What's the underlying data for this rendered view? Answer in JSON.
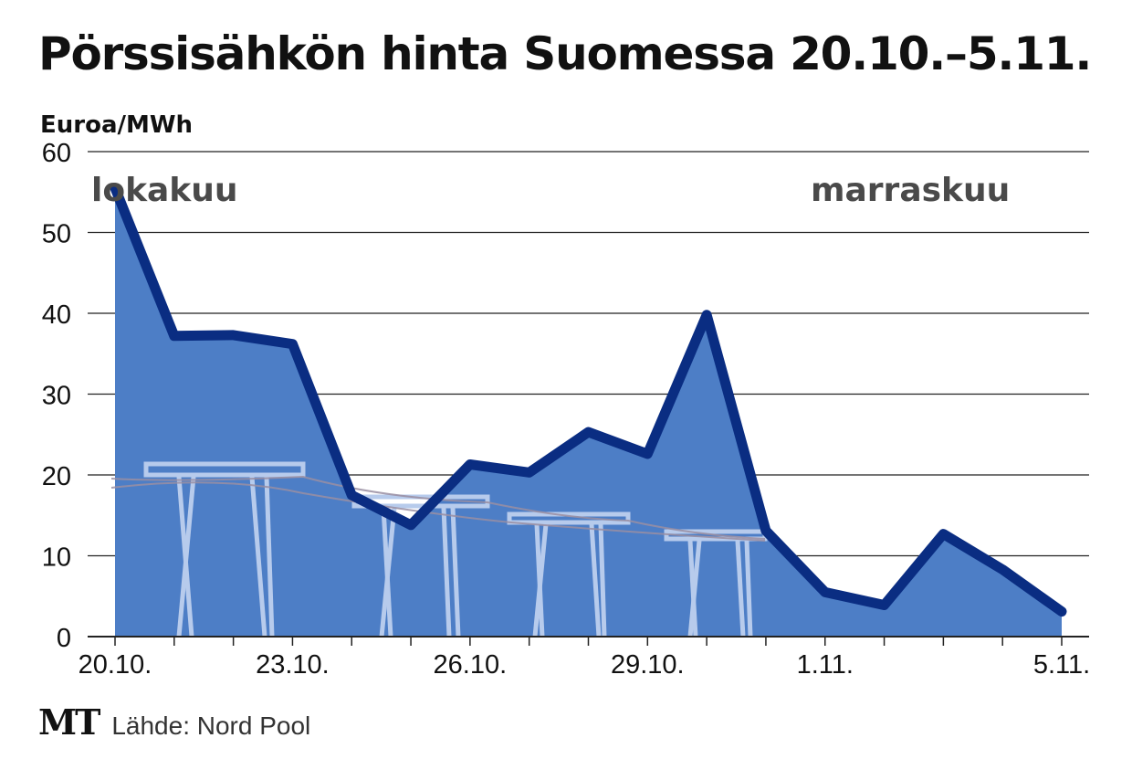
{
  "chart_data": {
    "type": "area",
    "title": "Pörssisähkön hinta Suomessa 20.10.–5.11.",
    "ylabel": "Euroa/MWh",
    "ylim": [
      0,
      60
    ],
    "yticks": [
      0,
      10,
      20,
      30,
      40,
      50,
      60
    ],
    "x": [
      "20.10.",
      "21.10.",
      "22.10.",
      "23.10.",
      "24.10.",
      "25.10.",
      "26.10.",
      "27.10.",
      "28.10.",
      "29.10.",
      "30.10.",
      "31.10.",
      "1.11.",
      "2.11.",
      "3.11.",
      "4.11.",
      "5.11."
    ],
    "xtick_labels": [
      "20.10.",
      "23.10.",
      "26.10.",
      "29.10.",
      "1.11.",
      "5.11."
    ],
    "values": [
      55.5,
      37.2,
      37.3,
      36.2,
      17.5,
      13.8,
      21.3,
      20.3,
      25.3,
      22.6,
      39.8,
      13.1,
      5.5,
      3.9,
      12.7,
      8.3,
      3.1
    ],
    "grid": true,
    "annotations": [
      "lokakuu",
      "marraskuu"
    ],
    "colors": {
      "area": "#4d7ec6",
      "line": "#0a2d82",
      "pylon": "#b7cbec"
    }
  },
  "footer": {
    "logo": "MT",
    "source": "Lähde: Nord Pool"
  }
}
